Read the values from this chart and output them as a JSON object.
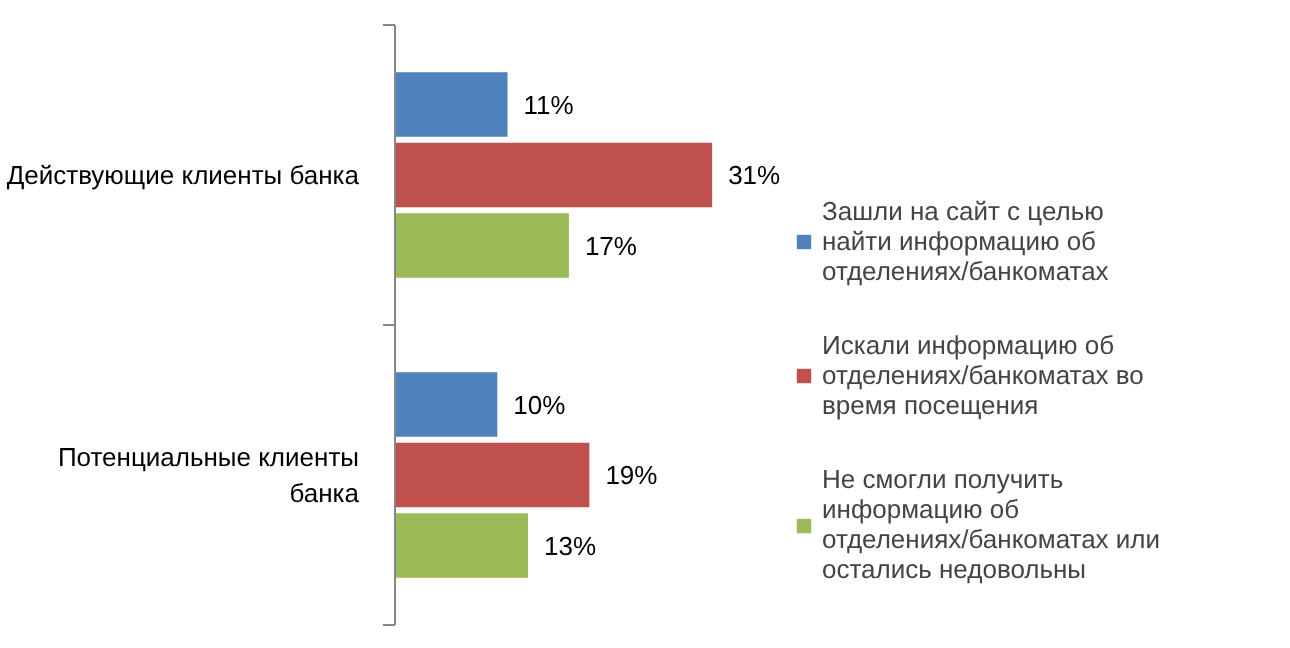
{
  "chart_data": {
    "type": "bar",
    "orientation": "horizontal",
    "categories": [
      "Действующие клиенты банка",
      "Потенциальные клиенты банка"
    ],
    "series": [
      {
        "name": "Зашли на сайт с целью найти информацию об отделениях/банкоматах",
        "color": "#4f81bd",
        "values": [
          11,
          10
        ],
        "value_labels": [
          "11%",
          "10%"
        ]
      },
      {
        "name": "Искали информацию об отделениях/банкоматах во время посещения",
        "color": "#c0504d",
        "values": [
          31,
          19
        ],
        "value_labels": [
          "31%",
          "19%"
        ]
      },
      {
        "name": "Не смогли получить информацию об отделениях/банкоматах или остались недовольны",
        "color": "#9bbb59",
        "values": [
          17,
          13
        ],
        "value_labels": [
          "17%",
          "13%"
        ]
      }
    ],
    "grid": false,
    "legend": "right"
  }
}
